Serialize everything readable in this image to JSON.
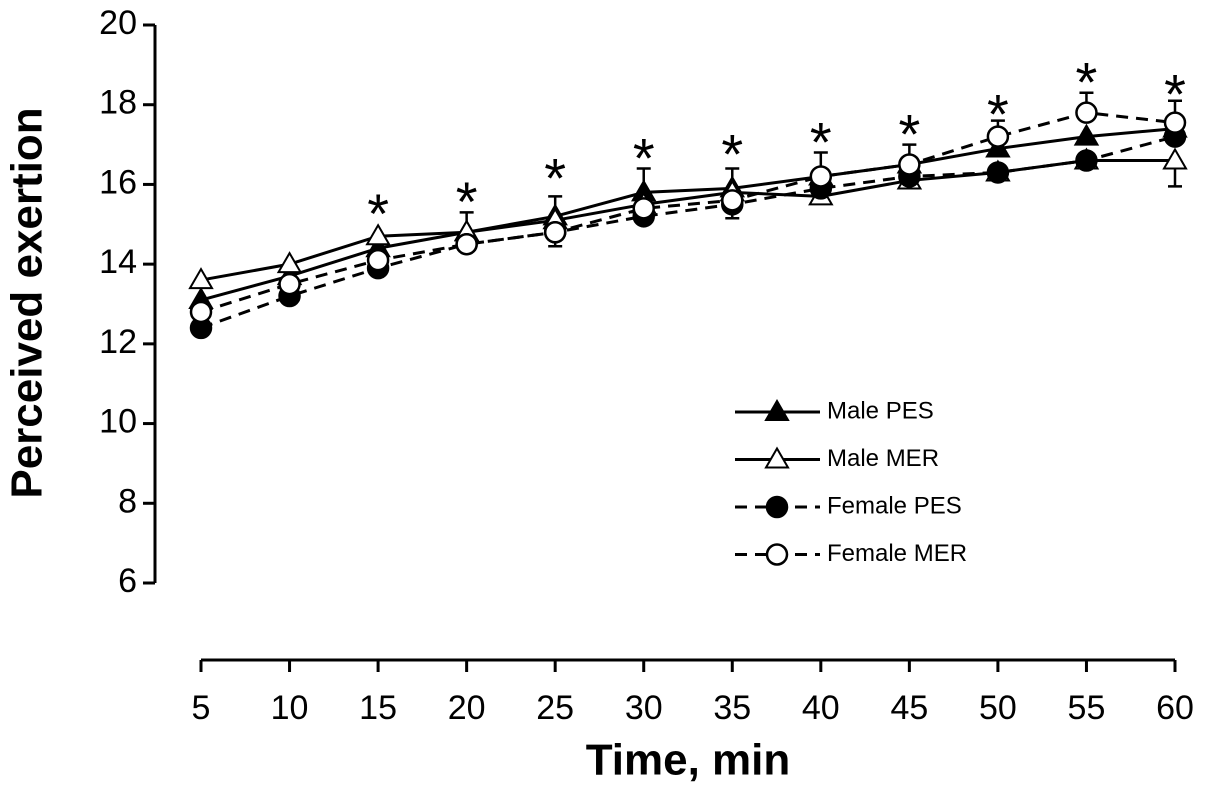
{
  "chart_data": {
    "type": "line",
    "xlabel": "Time, min",
    "ylabel": "Perceived exertion",
    "x": [
      5,
      10,
      15,
      20,
      25,
      30,
      35,
      40,
      45,
      50,
      55,
      60
    ],
    "xlim": [
      5,
      60
    ],
    "xticks": [
      5,
      10,
      15,
      20,
      25,
      30,
      35,
      40,
      45,
      50,
      55,
      60
    ],
    "ylim": [
      6,
      20
    ],
    "yticks": [
      6,
      8,
      10,
      12,
      14,
      16,
      18,
      20
    ],
    "legend": "lower right",
    "series": [
      {
        "name": "Male PES",
        "color": "#000000",
        "marker": "triangle",
        "filled": true,
        "dashed": false,
        "error_direction": "up",
        "values": [
          13.1,
          13.7,
          14.4,
          14.8,
          15.2,
          15.8,
          15.9,
          16.2,
          16.5,
          16.9,
          17.2,
          17.4
        ],
        "errors": [
          null,
          null,
          null,
          0.5,
          0.5,
          0.6,
          0.5,
          null,
          null,
          null,
          null,
          null
        ]
      },
      {
        "name": "Male MER",
        "color": "#000000",
        "marker": "triangle",
        "filled": false,
        "dashed": false,
        "error_direction": "down",
        "values": [
          13.6,
          14.0,
          14.7,
          14.8,
          15.1,
          15.5,
          15.8,
          15.7,
          16.1,
          16.3,
          16.6,
          16.6
        ],
        "errors": [
          null,
          null,
          null,
          null,
          null,
          null,
          null,
          null,
          null,
          null,
          null,
          0.65
        ]
      },
      {
        "name": "Female PES",
        "color": "#000000",
        "marker": "circle",
        "filled": true,
        "dashed": true,
        "error_direction": "down",
        "values": [
          12.4,
          13.2,
          13.9,
          14.5,
          14.8,
          15.2,
          15.5,
          15.9,
          16.2,
          16.3,
          16.6,
          17.2
        ],
        "errors": [
          null,
          null,
          null,
          null,
          0.35,
          null,
          0.35,
          null,
          null,
          null,
          null,
          null
        ]
      },
      {
        "name": "Female MER",
        "color": "#000000",
        "marker": "circle",
        "filled": false,
        "dashed": true,
        "error_direction": "up",
        "values": [
          12.8,
          13.5,
          14.1,
          14.5,
          14.8,
          15.4,
          15.6,
          16.2,
          16.5,
          17.2,
          17.8,
          17.55
        ],
        "errors": [
          null,
          null,
          null,
          null,
          null,
          null,
          null,
          0.6,
          0.5,
          0.4,
          0.5,
          0.55
        ]
      }
    ],
    "annotations": [
      {
        "x": 15,
        "y": 15.5,
        "text": "*"
      },
      {
        "x": 20,
        "y": 15.8,
        "text": "*"
      },
      {
        "x": 25,
        "y": 16.4,
        "text": "*"
      },
      {
        "x": 30,
        "y": 16.9,
        "text": "*"
      },
      {
        "x": 35,
        "y": 17.0,
        "text": "*"
      },
      {
        "x": 40,
        "y": 17.3,
        "text": "*"
      },
      {
        "x": 45,
        "y": 17.5,
        "text": "*"
      },
      {
        "x": 50,
        "y": 18.0,
        "text": "*"
      },
      {
        "x": 55,
        "y": 18.8,
        "text": "*"
      },
      {
        "x": 60,
        "y": 18.5,
        "text": "*"
      }
    ]
  }
}
